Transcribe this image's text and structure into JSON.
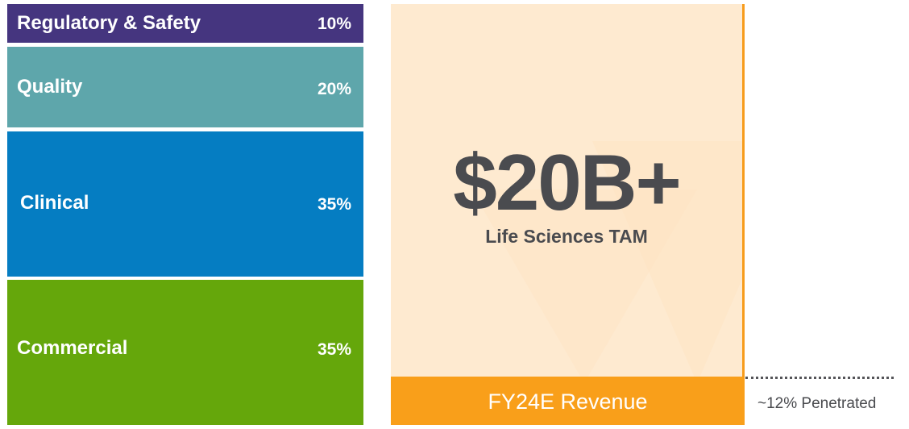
{
  "segments": [
    {
      "label": "Regulatory & Safety",
      "pct": "10%",
      "color": "#45357f"
    },
    {
      "label": "Quality",
      "pct": "20%",
      "color": "#5ea6ab"
    },
    {
      "label": "Clinical",
      "pct": "35%",
      "color": "#057dc2"
    },
    {
      "label": "Commercial",
      "pct": "35%",
      "color": "#65a70b"
    }
  ],
  "tam": {
    "value": "$20B+",
    "label": "Life Sciences TAM",
    "background": "#feead0"
  },
  "revenue": {
    "label": "FY24E Revenue",
    "color": "#f99f1a",
    "penetration": "~12% Penetrated"
  },
  "chart_data": {
    "type": "bar",
    "title": "Life Sciences TAM",
    "subtitle": "$20B+",
    "categories": [
      "Regulatory & Safety",
      "Quality",
      "Clinical",
      "Commercial"
    ],
    "values": [
      10,
      20,
      35,
      35
    ],
    "unit": "%",
    "orientation": "stacked-vertical",
    "annotations": [
      "$20B+ Life Sciences TAM",
      "FY24E Revenue",
      "~12% Penetrated"
    ],
    "penetration_pct": 12,
    "legend": "none",
    "grid": false
  }
}
